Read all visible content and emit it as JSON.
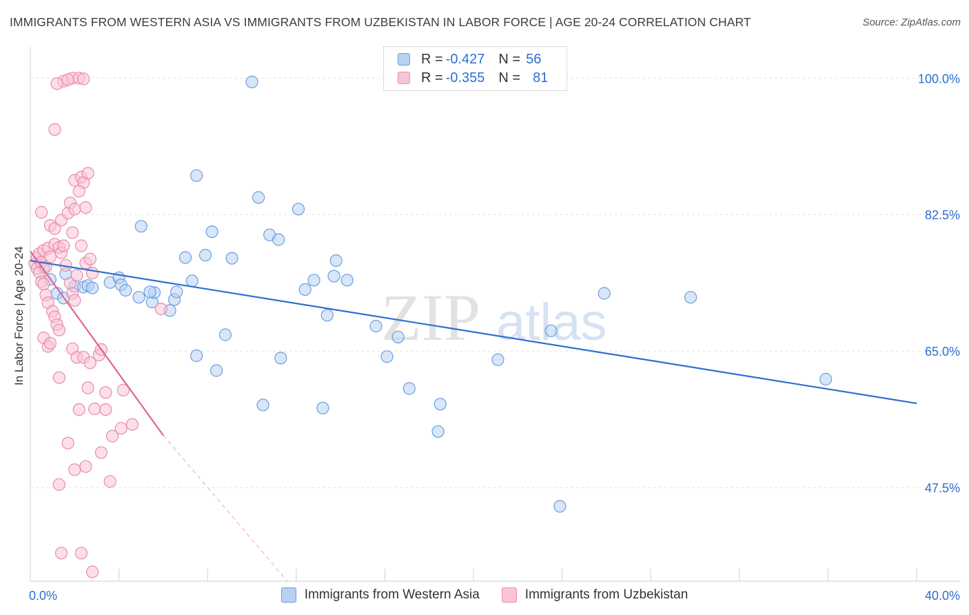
{
  "title": "IMMIGRANTS FROM WESTERN ASIA VS IMMIGRANTS FROM UZBEKISTAN IN LABOR FORCE | AGE 20-24 CORRELATION CHART",
  "source": "Source: ZipAtlas.com",
  "watermark": {
    "zip": "ZIP",
    "atlas": "atlas"
  },
  "legend": {
    "r_label": "R =",
    "n_label": "N =",
    "rows": [
      {
        "r": "-0.427",
        "n": "56",
        "fill": "#b8d1f3",
        "stroke": "#6a9de0"
      },
      {
        "r": "-0.355",
        "n": "81",
        "fill": "#f9c4d6",
        "stroke": "#e98aab"
      }
    ]
  },
  "chart_data": {
    "type": "scatter",
    "xlabel": "",
    "ylabel": "In Labor Force | Age 20-24",
    "xlim": [
      0,
      40
    ],
    "ylim": [
      35.5,
      104
    ],
    "x_tick_labels": [
      {
        "value": 0,
        "label": "0.0%"
      },
      {
        "value": 40,
        "label": "40.0%"
      }
    ],
    "y_tick_labels": [
      {
        "value": 100,
        "label": "100.0%"
      },
      {
        "value": 82.5,
        "label": "82.5%"
      },
      {
        "value": 65,
        "label": "65.0%"
      },
      {
        "value": 47.5,
        "label": "47.5%"
      }
    ],
    "grid": true,
    "legend_position": "top-center",
    "series": [
      {
        "name": "Immigrants from Western Asia",
        "color": "#6a9de0",
        "fill": "#b8d1f3",
        "line_color": "#2d6fcf",
        "trend": {
          "x": [
            0,
            40
          ],
          "y": [
            76.6,
            58.3
          ]
        },
        "points": [
          [
            0.6,
            75.7
          ],
          [
            0.9,
            74.2
          ],
          [
            1.6,
            74.9
          ],
          [
            2.0,
            73.3
          ],
          [
            2.4,
            73.2
          ],
          [
            2.6,
            73.4
          ],
          [
            2.8,
            73.1
          ],
          [
            3.6,
            73.8
          ],
          [
            4.0,
            74.4
          ],
          [
            4.1,
            73.5
          ],
          [
            4.3,
            72.8
          ],
          [
            4.9,
            71.9
          ],
          [
            5.5,
            71.3
          ],
          [
            5.6,
            72.5
          ],
          [
            5.0,
            81.0
          ],
          [
            5.4,
            72.6
          ],
          [
            6.3,
            70.2
          ],
          [
            6.5,
            71.6
          ],
          [
            6.6,
            72.6
          ],
          [
            7.0,
            77.0
          ],
          [
            7.5,
            87.5
          ],
          [
            7.3,
            74.0
          ],
          [
            7.5,
            64.4
          ],
          [
            7.9,
            77.3
          ],
          [
            8.2,
            80.3
          ],
          [
            8.4,
            62.5
          ],
          [
            8.8,
            67.1
          ],
          [
            9.1,
            76.9
          ],
          [
            10.0,
            99.5
          ],
          [
            10.3,
            84.7
          ],
          [
            10.5,
            58.1
          ],
          [
            10.8,
            79.9
          ],
          [
            11.2,
            79.3
          ],
          [
            11.3,
            64.1
          ],
          [
            12.1,
            83.2
          ],
          [
            12.4,
            72.9
          ],
          [
            12.8,
            74.1
          ],
          [
            13.2,
            57.7
          ],
          [
            13.4,
            69.6
          ],
          [
            13.7,
            74.6
          ],
          [
            13.8,
            76.6
          ],
          [
            14.3,
            74.1
          ],
          [
            15.6,
            68.2
          ],
          [
            16.1,
            64.3
          ],
          [
            16.6,
            66.8
          ],
          [
            17.1,
            60.2
          ],
          [
            18.4,
            54.7
          ],
          [
            18.5,
            58.2
          ],
          [
            21.1,
            63.9
          ],
          [
            23.5,
            67.6
          ],
          [
            23.9,
            45.1
          ],
          [
            25.9,
            72.4
          ],
          [
            29.8,
            71.9
          ],
          [
            35.9,
            61.4
          ],
          [
            1.2,
            72.4
          ],
          [
            1.5,
            71.8
          ]
        ]
      },
      {
        "name": "Immigrants from Uzbekistan",
        "color": "#e98aab",
        "fill": "#f9c4d6",
        "line_color": "#e06592",
        "trend": {
          "x": [
            0,
            6.0
          ],
          "y": [
            77.8,
            54.2
          ]
        },
        "trend_dashed": {
          "x": [
            6.0,
            11.6
          ],
          "y": [
            54.2,
            35.5
          ]
        },
        "points": [
          [
            0.2,
            76.2
          ],
          [
            0.3,
            77.0
          ],
          [
            0.3,
            75.6
          ],
          [
            0.4,
            75.1
          ],
          [
            0.4,
            77.5
          ],
          [
            0.5,
            76.4
          ],
          [
            0.6,
            77.9
          ],
          [
            0.7,
            75.8
          ],
          [
            0.8,
            78.2
          ],
          [
            0.9,
            77.1
          ],
          [
            0.5,
            73.9
          ],
          [
            0.6,
            73.6
          ],
          [
            0.7,
            72.2
          ],
          [
            0.8,
            71.2
          ],
          [
            1.0,
            70.1
          ],
          [
            1.1,
            69.4
          ],
          [
            1.2,
            68.4
          ],
          [
            1.3,
            67.7
          ],
          [
            0.6,
            66.7
          ],
          [
            0.8,
            65.6
          ],
          [
            0.5,
            82.8
          ],
          [
            0.9,
            81.1
          ],
          [
            1.1,
            78.7
          ],
          [
            1.3,
            78.3
          ],
          [
            1.4,
            77.6
          ],
          [
            1.5,
            78.5
          ],
          [
            1.6,
            76.0
          ],
          [
            1.1,
            80.7
          ],
          [
            1.4,
            81.8
          ],
          [
            1.7,
            82.7
          ],
          [
            1.8,
            84.0
          ],
          [
            1.9,
            80.2
          ],
          [
            2.0,
            83.2
          ],
          [
            2.3,
            78.5
          ],
          [
            2.5,
            83.4
          ],
          [
            1.8,
            73.7
          ],
          [
            1.9,
            72.4
          ],
          [
            2.0,
            71.5
          ],
          [
            2.1,
            74.7
          ],
          [
            1.9,
            65.3
          ],
          [
            2.1,
            64.2
          ],
          [
            1.5,
            99.6
          ],
          [
            1.9,
            100.0
          ],
          [
            1.7,
            99.8
          ],
          [
            2.2,
            100.0
          ],
          [
            2.4,
            99.9
          ],
          [
            1.2,
            99.3
          ],
          [
            1.1,
            93.4
          ],
          [
            2.0,
            86.9
          ],
          [
            2.3,
            87.3
          ],
          [
            2.4,
            86.6
          ],
          [
            2.6,
            87.8
          ],
          [
            2.2,
            85.5
          ],
          [
            2.5,
            76.3
          ],
          [
            2.8,
            75.0
          ],
          [
            2.7,
            76.8
          ],
          [
            2.4,
            64.2
          ],
          [
            2.7,
            63.5
          ],
          [
            3.1,
            64.5
          ],
          [
            2.6,
            60.3
          ],
          [
            2.2,
            57.5
          ],
          [
            2.9,
            57.6
          ],
          [
            3.4,
            57.5
          ],
          [
            3.7,
            54.1
          ],
          [
            4.1,
            55.1
          ],
          [
            4.6,
            55.6
          ],
          [
            4.2,
            60.0
          ],
          [
            3.2,
            52.0
          ],
          [
            1.7,
            53.2
          ],
          [
            1.3,
            47.9
          ],
          [
            2.5,
            50.2
          ],
          [
            2.0,
            49.8
          ],
          [
            3.6,
            48.3
          ],
          [
            1.4,
            39.1
          ],
          [
            2.3,
            39.1
          ],
          [
            2.8,
            36.7
          ],
          [
            5.9,
            70.4
          ],
          [
            3.2,
            65.2
          ],
          [
            3.4,
            59.7
          ],
          [
            1.3,
            61.6
          ],
          [
            0.9,
            66.0
          ]
        ]
      }
    ]
  },
  "bottom_legend": [
    {
      "label": "Immigrants from Western Asia",
      "fill": "#b8d1f3",
      "stroke": "#6a9de0"
    },
    {
      "label": "Immigrants from Uzbekistan",
      "fill": "#f9c4d6",
      "stroke": "#e98aab"
    }
  ]
}
